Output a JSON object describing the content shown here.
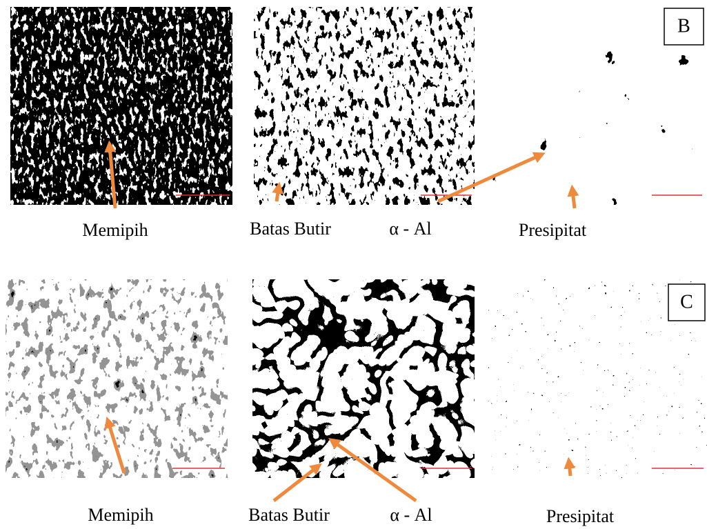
{
  "panel_tags": [
    "B",
    "C"
  ],
  "rows": [
    {
      "labels": [
        "Memipih",
        "Batas Butir",
        "α - Al",
        "Presipitat"
      ]
    },
    {
      "labels": [
        "Memipih",
        "Batas Butir",
        "α - Al",
        "Presipitat"
      ]
    }
  ]
}
